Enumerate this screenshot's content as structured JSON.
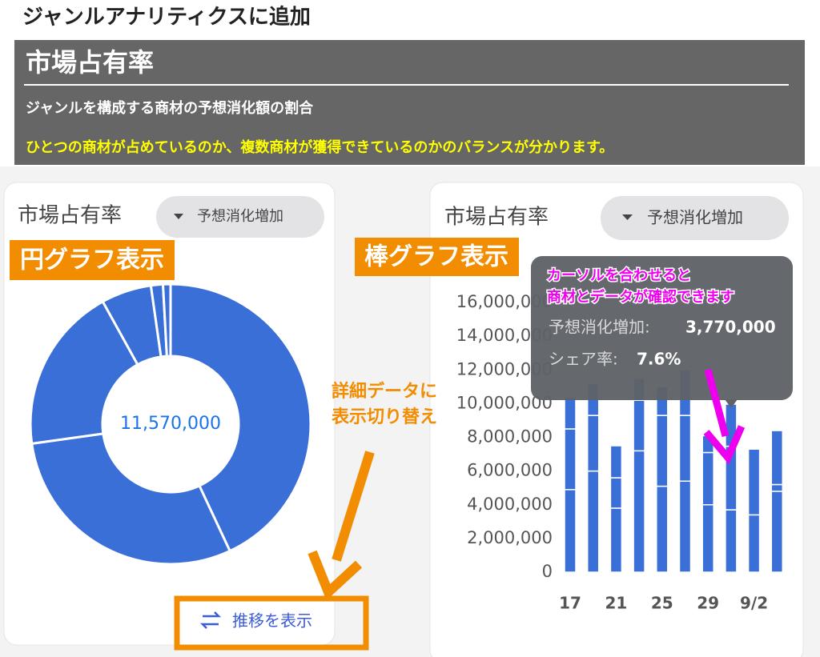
{
  "header": {
    "title": "ジャンルアナリティクスに追加",
    "section": "市場占有率",
    "subtitle": "ジャンルを構成する商材の予想消化額の割合",
    "note": "ひとつの商材が占めているのか、複数商材が獲得できているのかのバランスが分かります。"
  },
  "chart_data": [
    {
      "type": "pie",
      "title": "市場占有率",
      "dropdown": "予想消化増加",
      "badge": "円グラフ表示",
      "center_label": "11,570,000",
      "color": "#3b6fd8",
      "values": [
        4980000,
        3440000,
        2220000,
        670000,
        160000,
        100000
      ]
    },
    {
      "type": "bar",
      "title": "市場占有率",
      "dropdown": "予想消化増加",
      "badge": "棒グラフ表示",
      "categories": [
        "17",
        null,
        "21",
        null,
        "25",
        null,
        "29",
        null,
        "9/2",
        null
      ],
      "series": [
        {
          "color": "#3b6fd8",
          "values": [
            4900000,
            6000000,
            3800000,
            7200000,
            5100000,
            5400000,
            4000000,
            3700000,
            3400000,
            4800000
          ]
        },
        {
          "color": "#3b6fd8",
          "values": [
            3600000,
            3300000,
            1800000,
            3000000,
            4200000,
            3900000,
            3100000,
            3770000,
            3900000,
            400000
          ]
        },
        {
          "color": "#3b6fd8",
          "values": [
            1900000,
            1900000,
            1900000,
            1300000,
            1700000,
            2700000,
            1000000,
            2500000,
            0,
            3200000
          ]
        }
      ],
      "ylim": [
        0,
        16000000
      ],
      "yticks": [
        0,
        {
          "value": 2000000,
          "label": "2,000,000"
        },
        {
          "value": 4000000,
          "label": "4,000,000"
        },
        {
          "value": 6000000,
          "label": "6,000,000"
        },
        {
          "value": 8000000,
          "label": "8,000,000"
        },
        {
          "value": 10000000,
          "label": "10,000,000"
        },
        {
          "value": 12000000,
          "label": "12,000,000"
        },
        {
          "value": 14000000,
          "label": "14,000,000"
        },
        {
          "value": 16000000,
          "label": "16,000,000"
        }
      ]
    }
  ],
  "tooltip": {
    "metric_label": "予想消化増加:",
    "metric_value": "3,770,000",
    "share_label": "シェア率:",
    "share_value": "7.6%"
  },
  "annotations": {
    "switch_note": [
      "詳細データに",
      "表示切り替え"
    ],
    "tooltip_note": [
      "カーソルを合わせると",
      "商材とデータが確認できます"
    ]
  },
  "button": "推移を表示"
}
